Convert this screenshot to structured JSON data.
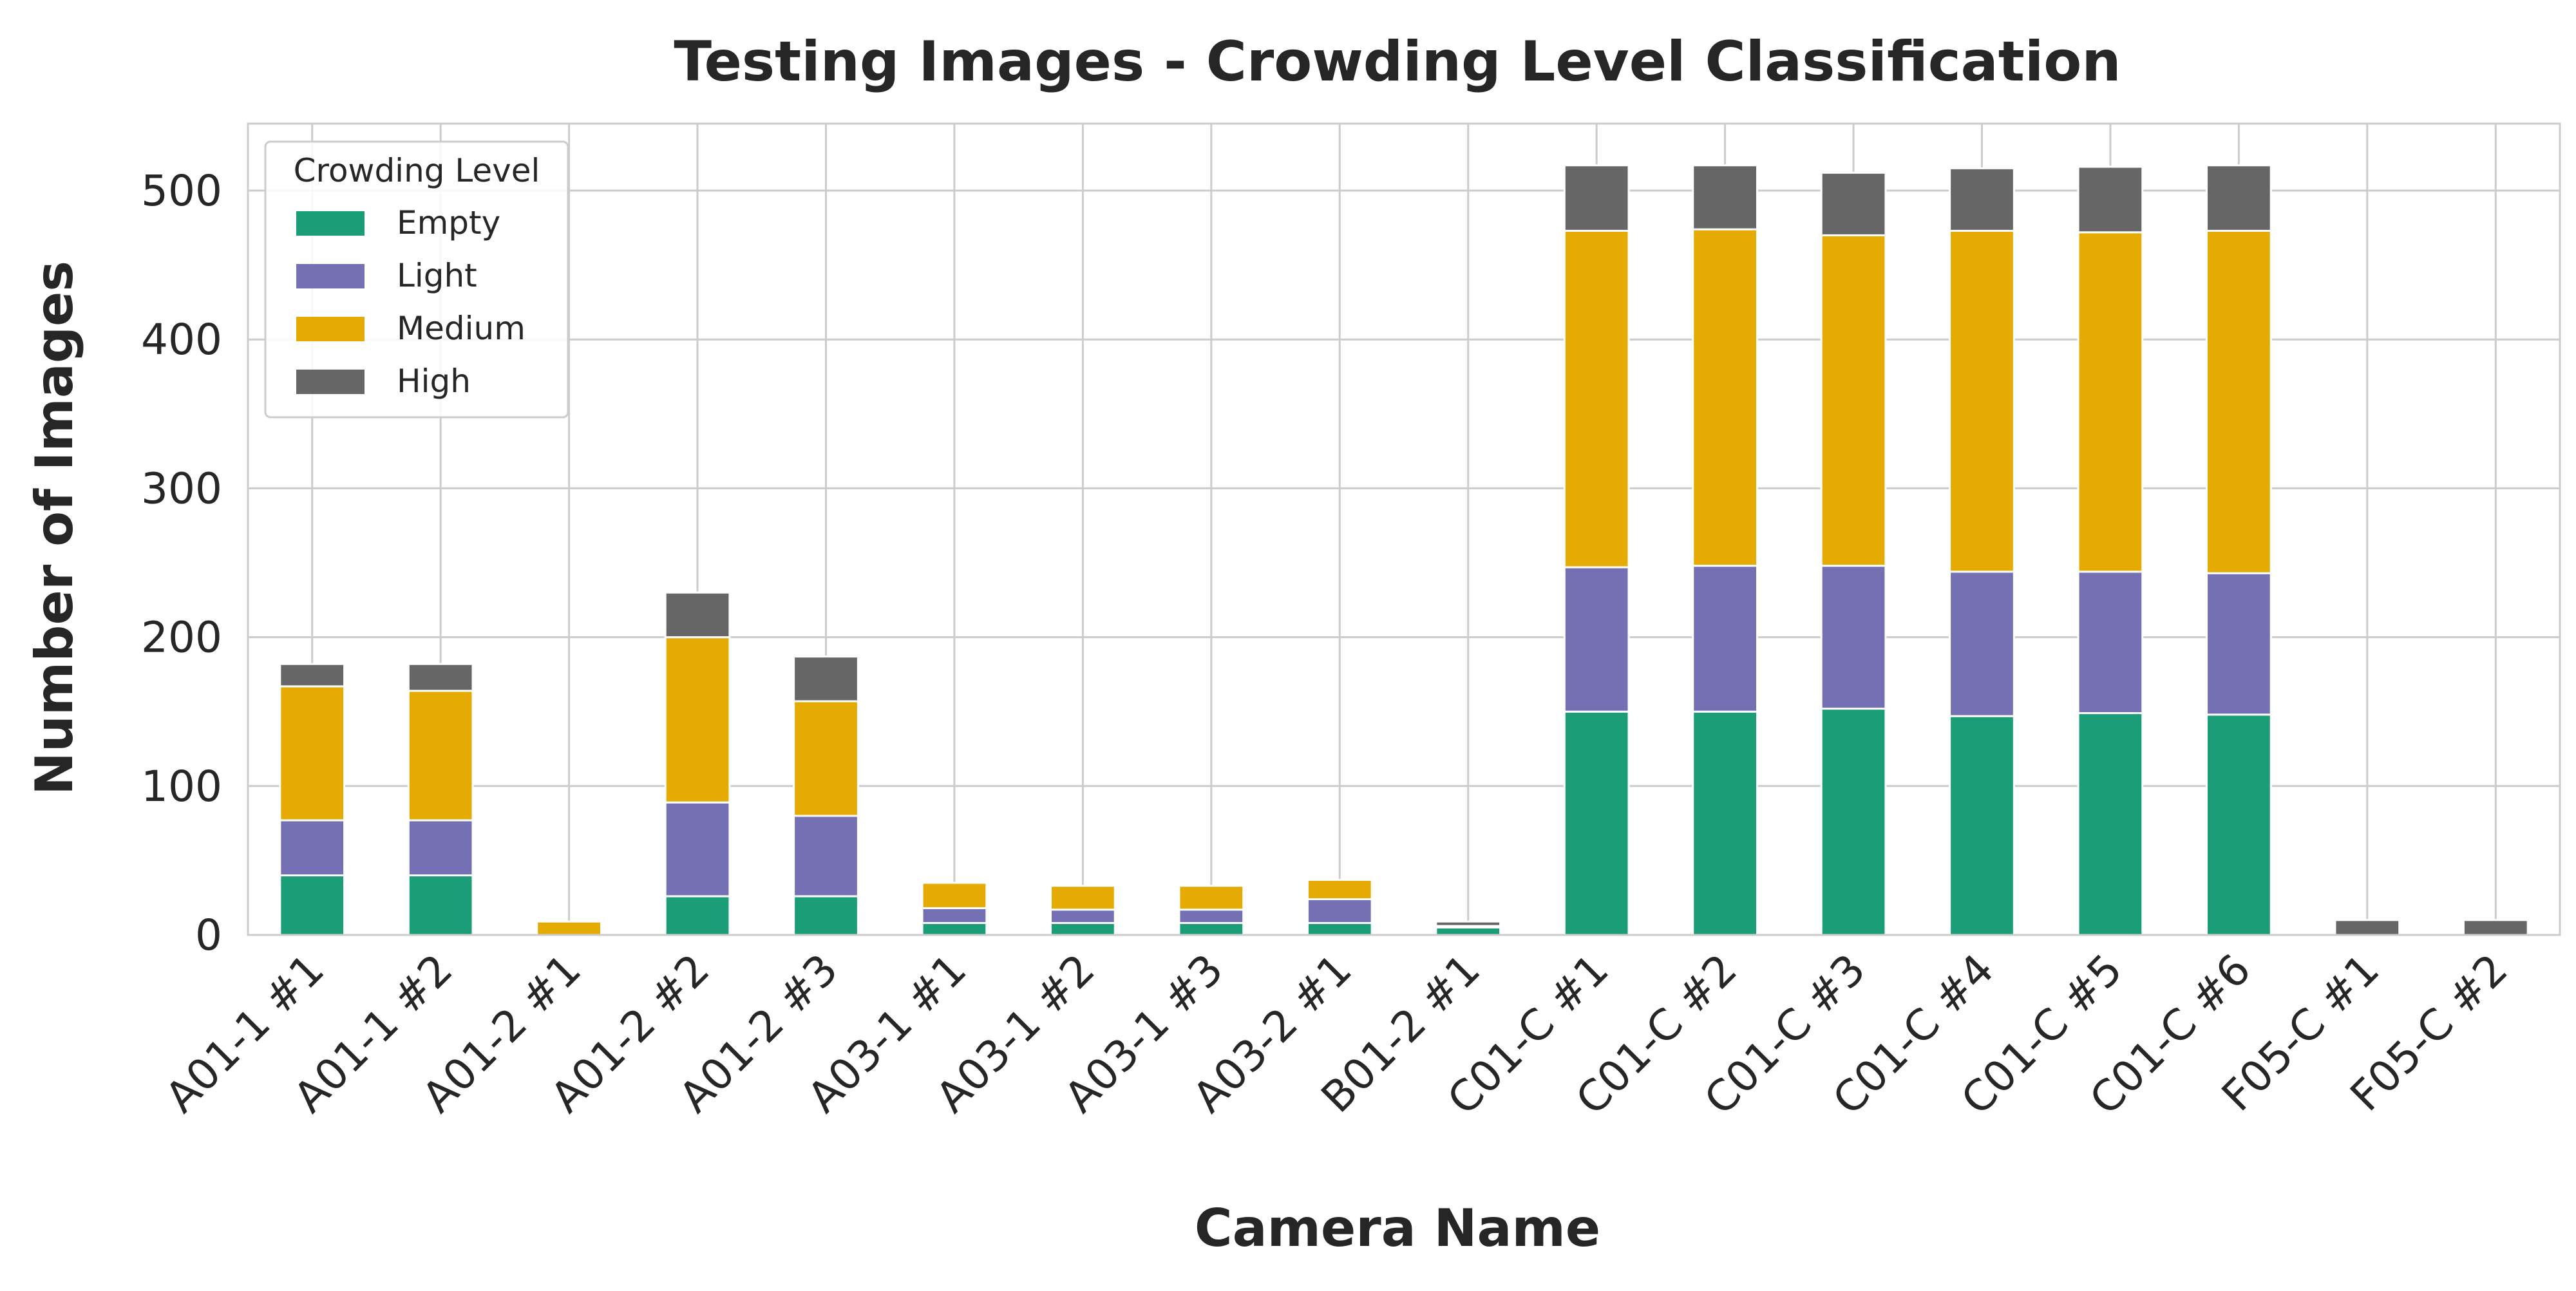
{
  "chart_data": {
    "type": "bar",
    "stacked": true,
    "title": "Testing Images - Crowding Level Classification",
    "xlabel": "Camera Name",
    "ylabel": "Number of Images",
    "ylim": [
      0,
      545
    ],
    "yticks": [
      0,
      100,
      200,
      300,
      400,
      500
    ],
    "grid": true,
    "legend": {
      "title": "Crowding Level",
      "placement": "top-left"
    },
    "categories": [
      "A01-1 #1",
      "A01-1 #2",
      "A01-2 #1",
      "A01-2 #2",
      "A01-2 #3",
      "A03-1 #1",
      "A03-1 #2",
      "A03-1 #3",
      "A03-2 #1",
      "B01-2 #1",
      "C01-C #1",
      "C01-C #2",
      "C01-C #3",
      "C01-C #4",
      "C01-C #5",
      "C01-C #6",
      "F05-C #1",
      "F05-C #2"
    ],
    "series": [
      {
        "name": "Empty",
        "color": "#1b9e77",
        "values": [
          40,
          40,
          0,
          26,
          26,
          8,
          8,
          8,
          8,
          5,
          150,
          150,
          152,
          147,
          149,
          148,
          0,
          0
        ]
      },
      {
        "name": "Light",
        "color": "#7570b3",
        "values": [
          37,
          37,
          0,
          63,
          54,
          10,
          9,
          9,
          16,
          1,
          97,
          98,
          96,
          97,
          95,
          95,
          0,
          0
        ]
      },
      {
        "name": "Medium",
        "color": "#e6ab02",
        "values": [
          90,
          87,
          9,
          111,
          77,
          17,
          16,
          16,
          13,
          0,
          226,
          226,
          222,
          229,
          228,
          230,
          0,
          0
        ]
      },
      {
        "name": "High",
        "color": "#666666",
        "values": [
          15,
          18,
          0,
          30,
          30,
          0,
          0,
          0,
          0,
          3,
          44,
          43,
          42,
          42,
          44,
          44,
          10,
          10
        ]
      }
    ]
  }
}
